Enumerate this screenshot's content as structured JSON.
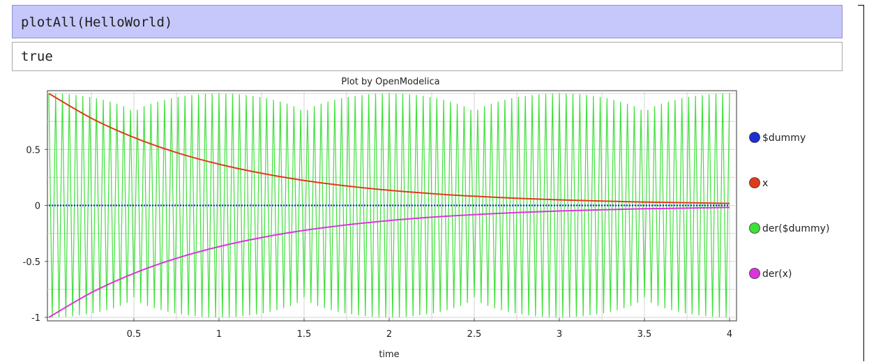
{
  "notebook": {
    "input_text": "plotAll(HelloWorld)",
    "output_text": "true"
  },
  "chart_data": {
    "type": "line",
    "title": "Plot by OpenModelica",
    "xlabel": "time",
    "ylabel": "",
    "xlim": [
      0,
      4
    ],
    "ylim": [
      -1,
      1
    ],
    "grid": true,
    "legend_position": "right",
    "x_ticks": [
      "0.5",
      "1",
      "1.5",
      "2",
      "2.5",
      "3",
      "3.5",
      "4"
    ],
    "y_ticks": [
      "0.5",
      "0",
      "-0.5",
      "-1"
    ],
    "series": [
      {
        "name": "$dummy",
        "color": "#1a2fd4",
        "x": [
          0,
          4
        ],
        "y": [
          0,
          0
        ]
      },
      {
        "name": "x",
        "color": "#e03a1c",
        "x": [
          0,
          0.25,
          0.5,
          0.75,
          1,
          1.25,
          1.5,
          1.75,
          2,
          2.25,
          2.5,
          2.75,
          3,
          3.25,
          3.5,
          3.75,
          4
        ],
        "y": [
          1,
          0.779,
          0.607,
          0.472,
          0.368,
          0.287,
          0.223,
          0.174,
          0.135,
          0.105,
          0.082,
          0.064,
          0.05,
          0.039,
          0.03,
          0.024,
          0.018
        ]
      },
      {
        "name": "der($dummy)",
        "color": "#3ee03a",
        "description_values": {
          "amplitude_max": 1,
          "amplitude_min": 0.82,
          "cycles": 100
        },
        "x": [
          0,
          4
        ],
        "y": [
          -1,
          1
        ]
      },
      {
        "name": "der(x)",
        "color": "#dd33dd",
        "x": [
          0,
          0.25,
          0.5,
          0.75,
          1,
          1.25,
          1.5,
          1.75,
          2,
          2.25,
          2.5,
          2.75,
          3,
          3.25,
          3.5,
          3.75,
          4
        ],
        "y": [
          -1,
          -0.779,
          -0.607,
          -0.472,
          -0.368,
          -0.287,
          -0.223,
          -0.174,
          -0.135,
          -0.105,
          -0.082,
          -0.064,
          -0.05,
          -0.039,
          -0.03,
          -0.024,
          -0.018
        ]
      }
    ]
  }
}
